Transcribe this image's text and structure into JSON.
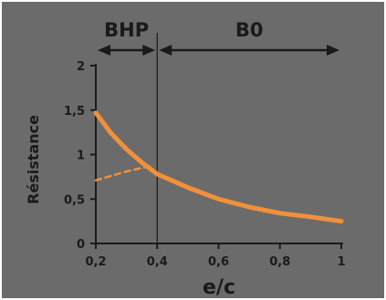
{
  "chart_data": {
    "type": "line",
    "xlabel": "e/c",
    "ylabel": "Résistance",
    "xlim": [
      0.2,
      1.0
    ],
    "ylim": [
      0,
      2
    ],
    "x_ticks": [
      0.2,
      0.4,
      0.6,
      0.8,
      1.0
    ],
    "x_tick_labels": [
      "0,2",
      "0,4",
      "0,6",
      "0,8",
      "1"
    ],
    "y_ticks": [
      0,
      0.5,
      1,
      1.5,
      2
    ],
    "y_tick_labels": [
      "0",
      "0,5",
      "1",
      "1,5",
      "2"
    ],
    "grid": false,
    "regions": [
      {
        "label": "BHP",
        "from": 0.2,
        "to": 0.4
      },
      {
        "label": "B0",
        "from": 0.4,
        "to": 1.0
      }
    ],
    "boundary_x": 0.4,
    "series": [
      {
        "style": "solid",
        "x": [
          0.2,
          0.25,
          0.3,
          0.35,
          0.4,
          0.5,
          0.6,
          0.7,
          0.8,
          0.9,
          1.0
        ],
        "y": [
          1.47,
          1.24,
          1.06,
          0.91,
          0.78,
          0.63,
          0.5,
          0.41,
          0.34,
          0.3,
          0.25
        ]
      },
      {
        "style": "dashed",
        "x": [
          0.2,
          0.25,
          0.3,
          0.35,
          0.38
        ],
        "y": [
          0.71,
          0.76,
          0.81,
          0.85,
          0.87
        ]
      }
    ],
    "colors": {
      "background": "#6b6b6b",
      "line": "#f0913a",
      "axis": "#1a1a1a"
    }
  }
}
